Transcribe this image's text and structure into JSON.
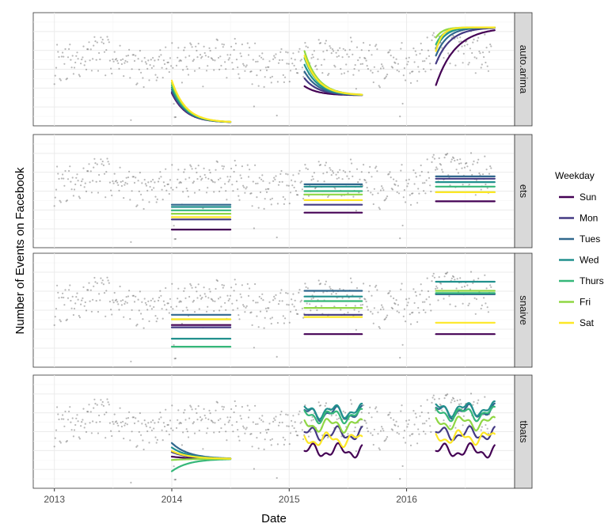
{
  "chart_data": {
    "type": "line",
    "xlabel": "Date",
    "ylabel": "Number of Events on Facebook",
    "x_ticks": [
      2013,
      2014,
      2015,
      2016
    ],
    "x_range": [
      2012.82,
      2016.92
    ],
    "legend": {
      "title": "Weekday",
      "placement": "right"
    },
    "grid": true,
    "series": [
      {
        "name": "Sun",
        "color": "#440154"
      },
      {
        "name": "Mon",
        "color": "#443a83"
      },
      {
        "name": "Tues",
        "color": "#31688e"
      },
      {
        "name": "Wed",
        "color": "#21908d"
      },
      {
        "name": "Thurs",
        "color": "#35b779"
      },
      {
        "name": "Fri",
        "color": "#8fd744"
      },
      {
        "name": "Sat",
        "color": "#fde725"
      }
    ],
    "observed_points": "grey scatter of daily event counts, Jan 2013 to Sep 2016, shown in every panel",
    "forecast_windows": [
      {
        "start": 2014.0,
        "end": 2014.5
      },
      {
        "start": 2015.13,
        "end": 2015.62
      },
      {
        "start": 2016.25,
        "end": 2016.75
      }
    ],
    "panels": [
      {
        "label": "auto.arima",
        "forecasts": [
          {
            "window": 0,
            "start": [
              0.29,
              0.3,
              0.32,
              0.34,
              0.36,
              0.38,
              0.4
            ],
            "end": 0.03,
            "shape": "decay"
          },
          {
            "window": 1,
            "start": [
              0.35,
              0.42,
              0.48,
              0.54,
              0.6,
              0.66,
              0.62
            ],
            "end": 0.27,
            "shape": "decay"
          },
          {
            "window": 2,
            "start": [
              0.36,
              0.55,
              0.62,
              0.68,
              0.72,
              0.78,
              0.66
            ],
            "end": 0.87,
            "shape": "rise"
          }
        ]
      },
      {
        "label": "ets",
        "forecasts": [
          {
            "window": 0,
            "start": [
              0.16,
              0.25,
              0.38,
              0.36,
              0.33,
              0.3,
              0.27
            ],
            "shape": "flat"
          },
          {
            "window": 1,
            "start": [
              0.31,
              0.38,
              0.56,
              0.54,
              0.5,
              0.47,
              0.42
            ],
            "shape": "flat"
          },
          {
            "window": 2,
            "start": [
              0.41,
              0.61,
              0.63,
              0.58,
              0.54,
              0.49,
              0.49
            ],
            "shape": "flat"
          }
        ]
      },
      {
        "label": "snaive",
        "forecasts": [
          {
            "window": 0,
            "start": [
              0.37,
              0.35,
              0.46,
              0.25,
              0.18,
              0.42,
              0.42
            ],
            "shape": "flat"
          },
          {
            "window": 1,
            "start": [
              0.29,
              0.46,
              0.67,
              0.62,
              0.58,
              0.52,
              0.44
            ],
            "shape": "flat"
          },
          {
            "window": 2,
            "start": [
              0.29,
              0.64,
              0.64,
              0.75,
              0.65,
              0.67,
              0.39
            ],
            "shape": "flat"
          }
        ]
      },
      {
        "label": "tbats",
        "forecasts": [
          {
            "window": 0,
            "start": [
              0.28,
              0.32,
              0.4,
              0.36,
              0.15,
              0.25,
              0.33
            ],
            "end": 0.26,
            "shape": "converge"
          },
          {
            "window": 1,
            "start": [
              0.33,
              0.48,
              0.66,
              0.68,
              0.64,
              0.56,
              0.43
            ],
            "shape": "wavy"
          },
          {
            "window": 2,
            "start": [
              0.33,
              0.48,
              0.68,
              0.7,
              0.66,
              0.58,
              0.45
            ],
            "shape": "wavy"
          }
        ]
      }
    ]
  }
}
